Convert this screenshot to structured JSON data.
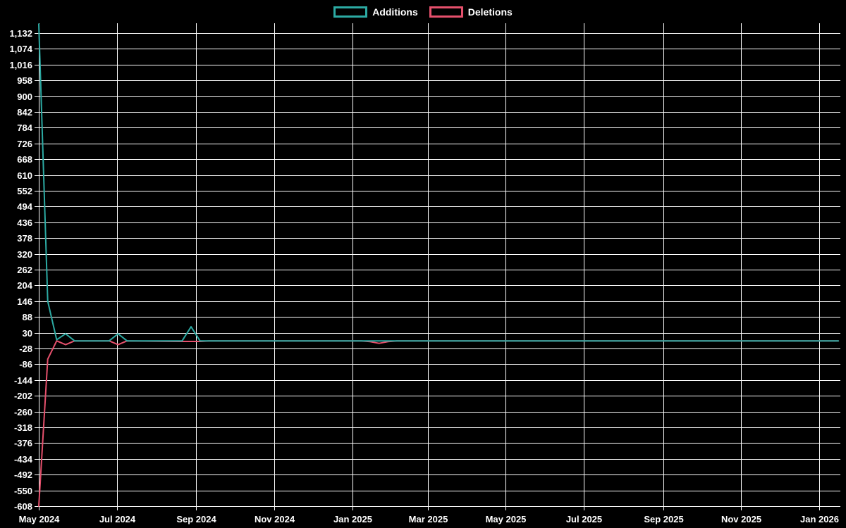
{
  "page": {
    "background": "#000000",
    "grid_color": "#fdfdfd",
    "text_color": "#ffffff"
  },
  "legend": {
    "position": "top-center",
    "items": [
      {
        "label": "Additions",
        "color": "#2CAAA3",
        "swatch": "outlined-box"
      },
      {
        "label": "Deletions",
        "color": "#E5506C",
        "swatch": "outlined-box"
      }
    ]
  },
  "chart_data": {
    "type": "line",
    "title": "",
    "xlabel": "",
    "ylabel": "",
    "legend_position": "top",
    "grid": true,
    "ylim": [
      -608,
      1168
    ],
    "y_tick_step": 58,
    "y_ticks": [
      1132,
      1074,
      1016,
      958,
      900,
      842,
      784,
      726,
      668,
      610,
      552,
      494,
      436,
      378,
      320,
      262,
      204,
      146,
      88,
      30,
      -28,
      -86,
      -144,
      -202,
      -260,
      -318,
      -376,
      -434,
      -492,
      -550,
      -608
    ],
    "x_ticks": [
      {
        "date": "2024-05-01",
        "label": "May 2024"
      },
      {
        "date": "2024-07-01",
        "label": "Jul 2024"
      },
      {
        "date": "2024-09-01",
        "label": "Sep 2024"
      },
      {
        "date": "2024-11-01",
        "label": "Nov 2024"
      },
      {
        "date": "2025-01-01",
        "label": "Jan 2025"
      },
      {
        "date": "2025-03-01",
        "label": "Mar 2025"
      },
      {
        "date": "2025-05-01",
        "label": "May 2025"
      },
      {
        "date": "2025-07-01",
        "label": "Jul 2025"
      },
      {
        "date": "2025-09-01",
        "label": "Sep 2025"
      },
      {
        "date": "2025-11-01",
        "label": "Nov 2025"
      },
      {
        "date": "2026-01-01",
        "label": "Jan 2026"
      }
    ],
    "series": [
      {
        "name": "Additions",
        "color": "#2CAAA3",
        "value_key": "additions"
      },
      {
        "name": "Deletions",
        "color": "#E5506C",
        "value_key": "deletions"
      }
    ],
    "points": [
      {
        "date": "2024-05-01",
        "additions": 1165,
        "deletions": -608
      },
      {
        "date": "2024-05-08",
        "additions": 146,
        "deletions": -67
      },
      {
        "date": "2024-05-15",
        "additions": 4,
        "deletions": 0
      },
      {
        "date": "2024-05-22",
        "additions": 26,
        "deletions": -14
      },
      {
        "date": "2024-05-29",
        "additions": 0,
        "deletions": 0
      },
      {
        "date": "2024-06-25",
        "additions": 0,
        "deletions": 0
      },
      {
        "date": "2024-07-02",
        "additions": 26,
        "deletions": -14
      },
      {
        "date": "2024-07-09",
        "additions": 0,
        "deletions": 0
      },
      {
        "date": "2024-08-21",
        "additions": 0,
        "deletions": -2
      },
      {
        "date": "2024-08-28",
        "additions": 52,
        "deletions": -2
      },
      {
        "date": "2024-09-04",
        "additions": 0,
        "deletions": -2
      },
      {
        "date": "2024-09-11",
        "additions": 0,
        "deletions": 0
      },
      {
        "date": "2025-01-08",
        "additions": 0,
        "deletions": 0
      },
      {
        "date": "2025-01-15",
        "additions": 0,
        "deletions": -3
      },
      {
        "date": "2025-01-22",
        "additions": 0,
        "deletions": -9
      },
      {
        "date": "2025-01-29",
        "additions": 0,
        "deletions": -3
      },
      {
        "date": "2025-02-05",
        "additions": 0,
        "deletions": 0
      },
      {
        "date": "2026-01-16",
        "additions": 0,
        "deletions": 0
      }
    ]
  }
}
